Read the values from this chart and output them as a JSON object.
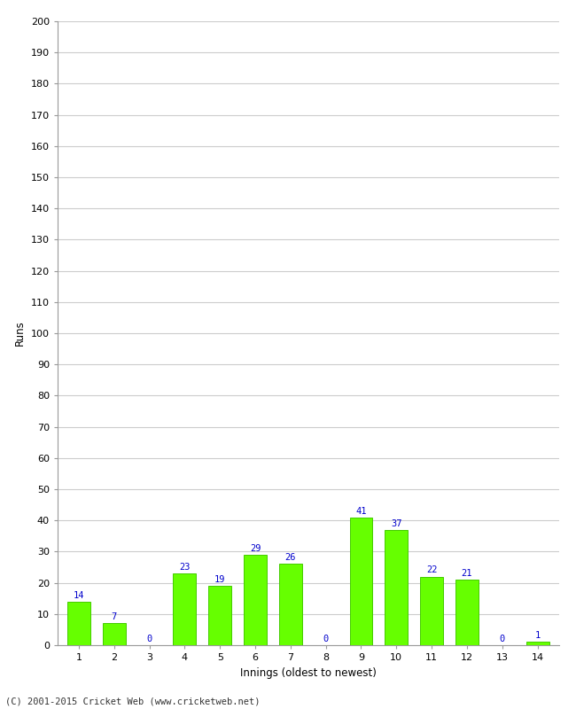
{
  "xlabel": "Innings (oldest to newest)",
  "ylabel": "Runs",
  "categories": [
    1,
    2,
    3,
    4,
    5,
    6,
    7,
    8,
    9,
    10,
    11,
    12,
    13,
    14
  ],
  "values": [
    14,
    7,
    0,
    23,
    19,
    29,
    26,
    0,
    41,
    37,
    22,
    21,
    0,
    1
  ],
  "bar_color": "#66ff00",
  "bar_edge_color": "#44cc00",
  "label_color": "#0000cc",
  "ylim": [
    0,
    200
  ],
  "ytick_step": 10,
  "background_color": "#ffffff",
  "grid_color": "#cccccc",
  "footer": "(C) 2001-2015 Cricket Web (www.cricketweb.net)",
  "label_fontsize": 7.5,
  "axis_tick_fontsize": 8,
  "axis_label_fontsize": 8.5,
  "footer_fontsize": 7.5
}
